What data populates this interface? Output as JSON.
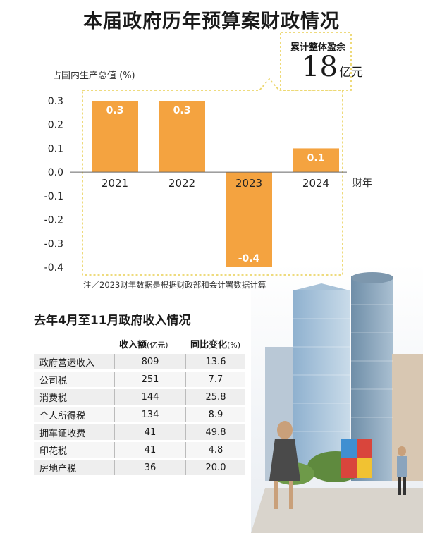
{
  "title": "本届政府历年预算案财政情况",
  "surplus": {
    "label": "累计整体盈余",
    "value": "18",
    "unit": "亿元"
  },
  "note": "注／2023财年数据是根据财政部和会计署数据计算",
  "chart_data": {
    "type": "bar",
    "categories": [
      "2021",
      "2022",
      "2023",
      "2024"
    ],
    "values": [
      0.3,
      0.3,
      -0.4,
      0.1
    ],
    "value_labels": [
      "0.3",
      "0.3",
      "-0.4",
      "0.1"
    ],
    "ylabel": "占国内生产总值 (%)",
    "xlabel": "财年",
    "ylim": [
      -0.4,
      0.3
    ],
    "yticks": [
      0.3,
      0.2,
      0.1,
      0.0,
      -0.1,
      -0.2,
      -0.3,
      -0.4
    ],
    "ytick_labels": [
      "0.3",
      "0.2",
      "0.1",
      "0.0",
      "-0.1",
      "-0.2",
      "-0.3",
      "-0.4"
    ],
    "bar_color": "#f4a340",
    "grid": false
  },
  "revenue_table": {
    "title": "去年4月至11月政府收入情况",
    "headers": [
      {
        "main": "收入额",
        "sub": "(亿元)"
      },
      {
        "main": "同比变化",
        "sub": "(%)"
      }
    ],
    "rows": [
      {
        "name": "政府营运收入",
        "amount": "809",
        "change": "13.6"
      },
      {
        "name": "公司税",
        "amount": "251",
        "change": "7.7"
      },
      {
        "name": "消费税",
        "amount": "144",
        "change": "25.8"
      },
      {
        "name": "个人所得税",
        "amount": "134",
        "change": "8.9"
      },
      {
        "name": "拥车证收费",
        "amount": "41",
        "change": "49.8"
      },
      {
        "name": "印花税",
        "amount": "41",
        "change": "4.8"
      },
      {
        "name": "房地产税",
        "amount": "36",
        "change": "20.0"
      }
    ]
  }
}
